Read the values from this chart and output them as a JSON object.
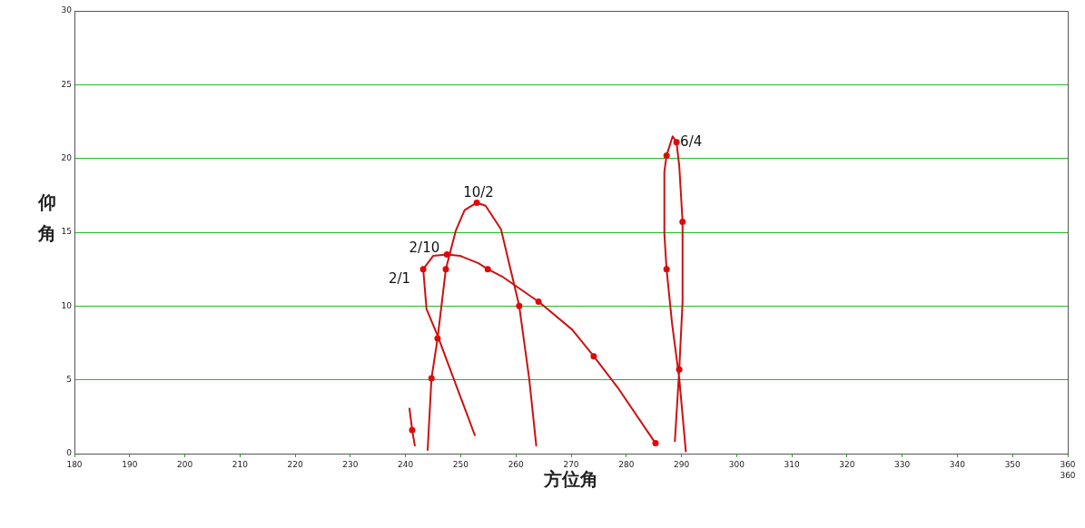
{
  "chart_data": {
    "type": "line",
    "xlabel": "方位角",
    "ylabel": "仰角",
    "xlim": [
      180,
      360
    ],
    "xticks": [
      180,
      190,
      200,
      210,
      220,
      230,
      240,
      250,
      260,
      270,
      280,
      290,
      300,
      310,
      320,
      330,
      340,
      350,
      360
    ],
    "ylim": [
      0,
      30
    ],
    "yticks": [
      0,
      5,
      10,
      15,
      20,
      25,
      30
    ],
    "grid": "y",
    "legend": false,
    "marker": "none",
    "line_style": "solid",
    "series": [
      {
        "color": "#cc1111",
        "x": [
          252.6,
          245.8,
          243.8,
          243.2,
          245.0,
          247.5,
          249.9,
          253.2,
          254.9,
          257.5,
          264.1,
          265.7,
          270.2,
          274.1,
          278.4,
          285.3
        ],
        "values": [
          1.2,
          8.0,
          9.8,
          12.5,
          13.4,
          13.5,
          13.4,
          12.9,
          12.5,
          12.0,
          10.3,
          9.8,
          8.4,
          6.6,
          4.5,
          0.7
        ]
      },
      {
        "color": "#cc1111",
        "x": [
          244.0,
          244.7,
          245.8,
          247.3,
          249.1,
          250.7,
          252.9,
          254.5,
          257.3,
          260.6,
          262.4,
          263.7
        ],
        "values": [
          0.2,
          5.1,
          7.8,
          12.5,
          15.1,
          16.5,
          17.0,
          16.8,
          15.2,
          10.0,
          5.1,
          0.5
        ]
      },
      {
        "color": "#cc1111",
        "x": [
          288.8,
          289.6,
          290.2,
          290.2,
          289.6,
          289.1,
          288.4,
          287.3,
          286.9,
          286.9,
          287.3,
          288.3,
          289.6,
          290.8
        ],
        "values": [
          0.8,
          5.7,
          10.3,
          15.7,
          19.5,
          21.1,
          21.5,
          20.2,
          19.1,
          14.9,
          12.5,
          8.8,
          5.1,
          0.1
        ]
      },
      {
        "color": "#cc1111",
        "x": [
          240.7,
          241.2,
          241.7
        ],
        "values": [
          3.1,
          1.6,
          0.5
        ]
      },
      {
        "type": "scatter",
        "color": "#ee0000",
        "marker": "circle",
        "x": [
          243.2,
          247.5,
          254.9,
          264.1,
          274.1,
          285.3,
          244.7,
          245.8,
          247.3,
          252.9,
          260.6,
          289.6,
          290.2,
          289.1,
          287.3,
          287.3,
          241.2
        ],
        "values": [
          12.5,
          13.5,
          12.5,
          10.3,
          6.6,
          0.7,
          5.1,
          7.8,
          12.5,
          17.0,
          10.0,
          5.7,
          15.7,
          21.1,
          20.2,
          12.5,
          1.6
        ]
      }
    ],
    "annotations": [
      {
        "text": "6/4",
        "x": 289.1,
        "y": 21.1
      },
      {
        "text": "10/2",
        "x": 252.9,
        "y": 17.0
      },
      {
        "text": "2/10",
        "x": 247.5,
        "y": 13.5
      },
      {
        "text": "2/1",
        "x": 243.2,
        "y": 12.5
      },
      "360"
    ]
  }
}
